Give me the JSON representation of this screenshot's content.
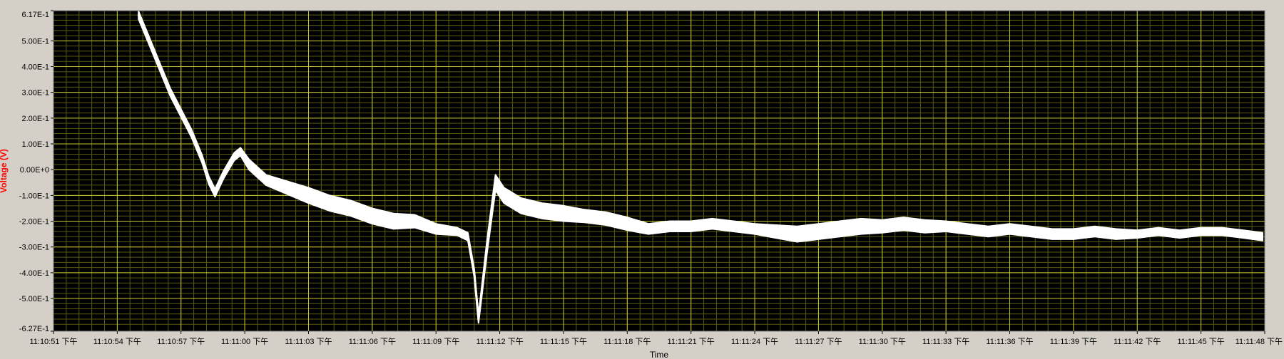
{
  "chart_data": {
    "type": "line",
    "title": "",
    "xlabel": "Time",
    "ylabel": "Voltage (V)",
    "xlim": [
      "11:10:51",
      "11:11:48"
    ],
    "ylim": [
      -0.627,
      0.617
    ],
    "grid": true,
    "legend": "none",
    "colors": {
      "background": "#d4d0c8",
      "plot_background": "#000000",
      "grid_major": "#c8c832",
      "grid_minor": "#5a5a14",
      "trace": "#ffffff",
      "ylabel": "#ff0000",
      "text": "#000000"
    },
    "yticks": [
      {
        "value": 0.617,
        "label": "6.17E-1"
      },
      {
        "value": 0.5,
        "label": "5.00E-1"
      },
      {
        "value": 0.4,
        "label": "4.00E-1"
      },
      {
        "value": 0.3,
        "label": "3.00E-1"
      },
      {
        "value": 0.2,
        "label": "2.00E-1"
      },
      {
        "value": 0.1,
        "label": "1.00E-1"
      },
      {
        "value": 0.0,
        "label": "0.00E+0"
      },
      {
        "value": -0.1,
        "label": "-1.00E-1"
      },
      {
        "value": -0.2,
        "label": "-2.00E-1"
      },
      {
        "value": -0.3,
        "label": "-3.00E-1"
      },
      {
        "value": -0.4,
        "label": "-4.00E-1"
      },
      {
        "value": -0.5,
        "label": "-5.00E-1"
      },
      {
        "value": -0.627,
        "label": "-6.27E-1"
      }
    ],
    "xticks": [
      {
        "value": "11:10:51",
        "label": "11:10:51 下午"
      },
      {
        "value": "11:10:54",
        "label": "11:10:54 下午"
      },
      {
        "value": "11:10:57",
        "label": "11:10:57 下午"
      },
      {
        "value": "11:11:00",
        "label": "11:11:00 下午"
      },
      {
        "value": "11:11:03",
        "label": "11:11:03 下午"
      },
      {
        "value": "11:11:06",
        "label": "11:11:06 下午"
      },
      {
        "value": "11:11:09",
        "label": "11:11:09 下午"
      },
      {
        "value": "11:11:12",
        "label": "11:11:12 下午"
      },
      {
        "value": "11:11:15",
        "label": "11:11:15 下午"
      },
      {
        "value": "11:11:18",
        "label": "11:11:18 下午"
      },
      {
        "value": "11:11:21",
        "label": "11:11:21 下午"
      },
      {
        "value": "11:11:24",
        "label": "11:11:24 下午"
      },
      {
        "value": "11:11:27",
        "label": "11:11:27 下午"
      },
      {
        "value": "11:11:30",
        "label": "11:11:30 下午"
      },
      {
        "value": "11:11:33",
        "label": "11:11:33 下午"
      },
      {
        "value": "11:11:36",
        "label": "11:11:36 下午"
      },
      {
        "value": "11:11:39",
        "label": "11:11:39 下午"
      },
      {
        "value": "11:11:42",
        "label": "11:11:42 下午"
      },
      {
        "value": "11:11:45",
        "label": "11:11:45 下午"
      },
      {
        "value": "11:11:48",
        "label": "11:11:48 下午"
      }
    ],
    "series": [
      {
        "x": [
          "11:10:55.0",
          "11:10:55.5",
          "11:10:56.0",
          "11:10:56.5",
          "11:10:57.0",
          "11:10:57.5",
          "11:10:58.0",
          "11:10:58.3",
          "11:10:58.6",
          "11:10:59.0",
          "11:10:59.5",
          "11:10:59.8",
          "11:11:00.2",
          "11:11:01.0",
          "11:11:02.0",
          "11:11:03.0",
          "11:11:04.0",
          "11:11:05.0",
          "11:11:06.0",
          "11:11:07.0",
          "11:11:08.0",
          "11:11:09.0",
          "11:11:10.0",
          "11:11:10.5",
          "11:11:10.8",
          "11:11:11.0",
          "11:11:11.4",
          "11:11:11.8",
          "11:11:12.2",
          "11:11:13.0",
          "11:11:14.0",
          "11:11:15.0",
          "11:11:16.0",
          "11:11:17.0",
          "11:11:18.0",
          "11:11:19.0",
          "11:11:20.0",
          "11:11:21.0",
          "11:11:22.0",
          "11:11:23.0",
          "11:11:24.0",
          "11:11:25.0",
          "11:11:26.0",
          "11:11:27.0",
          "11:11:28.0",
          "11:11:29.0",
          "11:11:30.0",
          "11:11:31.0",
          "11:11:32.0",
          "11:11:33.0",
          "11:11:34.0",
          "11:11:35.0",
          "11:11:36.0",
          "11:11:37.0",
          "11:11:38.0",
          "11:11:39.0",
          "11:11:40.0",
          "11:11:41.0",
          "11:11:42.0",
          "11:11:43.0",
          "11:11:44.0",
          "11:11:45.0",
          "11:11:46.0",
          "11:11:47.0",
          "11:11:47.9"
        ],
        "y": [
          0.6,
          0.5,
          0.4,
          0.3,
          0.22,
          0.14,
          0.04,
          -0.04,
          -0.09,
          -0.02,
          0.05,
          0.07,
          0.02,
          -0.04,
          -0.07,
          -0.1,
          -0.13,
          -0.15,
          -0.18,
          -0.2,
          -0.2,
          -0.23,
          -0.24,
          -0.26,
          -0.4,
          -0.58,
          -0.3,
          -0.05,
          -0.1,
          -0.14,
          -0.16,
          -0.17,
          -0.18,
          -0.19,
          -0.21,
          -0.23,
          -0.22,
          -0.22,
          -0.21,
          -0.22,
          -0.23,
          -0.24,
          -0.25,
          -0.24,
          -0.23,
          -0.22,
          -0.22,
          -0.21,
          -0.22,
          -0.22,
          -0.23,
          -0.24,
          -0.23,
          -0.24,
          -0.25,
          -0.25,
          -0.24,
          -0.25,
          -0.25,
          -0.24,
          -0.25,
          -0.24,
          -0.24,
          -0.25,
          -0.26
        ],
        "spread": [
          0.03,
          0.03,
          0.03,
          0.03,
          0.03,
          0.03,
          0.03,
          0.03,
          0.03,
          0.03,
          0.03,
          0.03,
          0.04,
          0.04,
          0.05,
          0.06,
          0.06,
          0.06,
          0.06,
          0.06,
          0.05,
          0.04,
          0.03,
          0.03,
          0.03,
          0.03,
          0.05,
          0.06,
          0.06,
          0.06,
          0.06,
          0.06,
          0.05,
          0.05,
          0.05,
          0.04,
          0.04,
          0.04,
          0.04,
          0.04,
          0.04,
          0.05,
          0.06,
          0.06,
          0.06,
          0.06,
          0.05,
          0.05,
          0.05,
          0.04,
          0.04,
          0.04,
          0.04,
          0.04,
          0.04,
          0.04,
          0.04,
          0.04,
          0.03,
          0.03,
          0.03,
          0.03,
          0.03,
          0.03,
          0.03
        ]
      }
    ]
  }
}
